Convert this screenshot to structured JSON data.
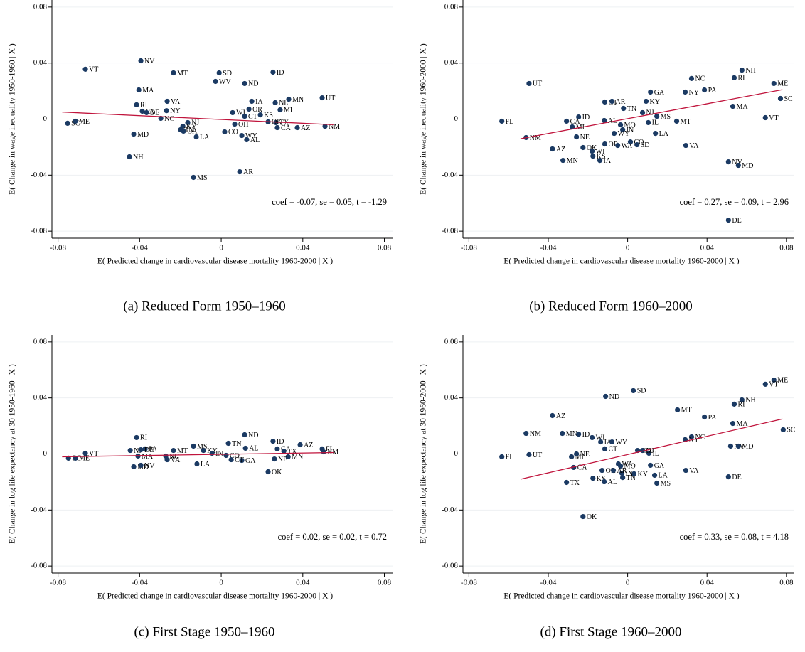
{
  "chart_data": [
    {
      "type": "scatter",
      "caption": "(a) Reduced Form 1950–1960",
      "xlabel": "E( Predicted change in cardiovascular disease mortality 1960-2000 | X )",
      "ylabel": "E( Change in wage inequality 1950-1960 | X )",
      "annotation": "coef = -0.07, se = 0.05, t = -1.29",
      "xlim": [
        -0.083,
        0.084
      ],
      "ylim": [
        -0.085,
        0.085
      ],
      "xticks": [
        -0.08,
        -0.04,
        0,
        0.04,
        0.08
      ],
      "yticks": [
        -0.08,
        -0.04,
        0,
        0.04,
        0.08
      ],
      "grid": true,
      "color": "#1b3a63",
      "label_color": "#1f4e79",
      "point_labels": [
        "SC",
        "ME",
        "VT",
        "NV",
        "MT",
        "SD",
        "ID",
        "WV",
        "ND",
        "MA",
        "VA",
        "IA",
        "NE",
        "MN",
        "UT",
        "RI",
        "NY",
        "PA",
        "DE",
        "NC",
        "MI",
        "OR",
        "WI",
        "KS",
        "CT",
        "OH",
        "TX",
        "CA",
        "AZ",
        "OK",
        "WY",
        "AL",
        "CO",
        "NJ",
        "KY",
        "TN",
        "GA",
        "LA",
        "MD",
        "NH",
        "MS",
        "AR",
        "NM"
      ],
      "x": [
        -0.0753,
        -0.0715,
        -0.0666,
        -0.0394,
        -0.0234,
        -0.001,
        0.0254,
        -0.0028,
        0.0115,
        -0.0404,
        -0.0265,
        0.015,
        0.0265,
        0.0331,
        0.0495,
        -0.0415,
        -0.0268,
        -0.0387,
        -0.0366,
        -0.0296,
        0.0289,
        0.0136,
        0.0056,
        0.0192,
        0.0115,
        0.0066,
        0.0268,
        0.0275,
        0.0373,
        0.023,
        0.0101,
        0.0125,
        0.0017,
        -0.0164,
        -0.0188,
        -0.0199,
        -0.0185,
        -0.0122,
        -0.0429,
        -0.045,
        -0.0136,
        0.0091,
        0.0509
      ],
      "y": [
        -0.003,
        -0.0015,
        0.0356,
        0.0416,
        0.033,
        0.033,
        0.0335,
        0.0269,
        0.0254,
        0.0208,
        0.0127,
        0.0127,
        0.0117,
        0.0142,
        0.0152,
        0.0102,
        0.006,
        0.0056,
        0.0046,
        0.0005,
        0.0066,
        0.0071,
        0.0046,
        0.003,
        0.002,
        -0.0036,
        -0.0025,
        -0.0061,
        -0.0061,
        -0.002,
        -0.0117,
        -0.0147,
        -0.0091,
        -0.0025,
        -0.0051,
        -0.0076,
        -0.0086,
        -0.0127,
        -0.0107,
        -0.0269,
        -0.0416,
        -0.0376,
        -0.0051
      ],
      "fit_line": {
        "x": [
          -0.078,
          0.055
        ],
        "y": [
          0.005,
          -0.004
        ],
        "color": "#c0143c"
      }
    },
    {
      "type": "scatter",
      "caption": "(b) Reduced Form 1960–2000",
      "xlabel": "E( Predicted change in cardiovascular disease mortality 1960-2000 | X )",
      "ylabel": "E( Change in wage inequality 1960-2000 | X )",
      "annotation": "coef = 0.27, se = 0.09, t = 2.96",
      "xlim": [
        -0.083,
        0.084
      ],
      "ylim": [
        -0.085,
        0.085
      ],
      "xticks": [
        -0.08,
        -0.04,
        0,
        0.04,
        0.08
      ],
      "yticks": [
        -0.08,
        -0.04,
        0,
        0.04,
        0.08
      ],
      "grid": true,
      "color": "#1b3a63",
      "label_color": "#1f4e79",
      "point_labels": [
        "FL",
        "UT",
        "NM",
        "AZ",
        "MN",
        "MI",
        "CA",
        "ID",
        "CT",
        "AR",
        "TN",
        "GA",
        "KY",
        "NC",
        "NH",
        "RI",
        "PA",
        "NY",
        "ME",
        "SC",
        "VT",
        "MA",
        "MT",
        "MS",
        "NJ",
        "IL",
        "LA",
        "AL",
        "OK",
        "NE",
        "WI",
        "KS",
        "IA",
        "OR",
        "WA",
        "CO",
        "SD",
        "MO",
        "IN",
        "WY",
        "VA",
        "NV",
        "MD",
        "DE"
      ],
      "x": [
        -0.0634,
        -0.0497,
        -0.0512,
        -0.0379,
        -0.0326,
        -0.0279,
        -0.0308,
        -0.0247,
        -0.0115,
        -0.0079,
        -0.0021,
        0.0115,
        0.0093,
        0.0322,
        0.0576,
        0.0537,
        0.0387,
        0.029,
        0.0737,
        0.077,
        0.0694,
        0.053,
        0.0247,
        0.0147,
        0.0075,
        0.0104,
        0.014,
        -0.0118,
        -0.0225,
        -0.0258,
        -0.0179,
        -0.0175,
        -0.014,
        -0.0115,
        -0.005,
        0.0014,
        0.0047,
        -0.0036,
        -0.0025,
        -0.0068,
        0.0293,
        0.0508,
        0.0558,
        0.0508
      ],
      "y": [
        -0.0015,
        0.0254,
        -0.0132,
        -0.0213,
        -0.0295,
        -0.0056,
        -0.0015,
        0.0015,
        0.0122,
        0.0127,
        0.0076,
        0.0193,
        0.0127,
        0.029,
        0.035,
        0.0295,
        0.0208,
        0.0193,
        0.0254,
        0.0147,
        0.001,
        0.0091,
        -0.0015,
        0.002,
        0.0046,
        -0.0025,
        -0.0102,
        -0.001,
        -0.0203,
        -0.0127,
        -0.0229,
        -0.0264,
        -0.0295,
        -0.0178,
        -0.0188,
        -0.0163,
        -0.0183,
        -0.0041,
        -0.0076,
        -0.0102,
        -0.0188,
        -0.0305,
        -0.033,
        -0.0721
      ],
      "fit_line": {
        "x": [
          -0.054,
          0.078
        ],
        "y": [
          -0.014,
          0.021
        ],
        "color": "#c0143c"
      }
    },
    {
      "type": "scatter",
      "caption": "(c) First Stage 1950–1960",
      "xlabel": "E( Predicted change in cardiovascular disease mortality 1960-2000 | X )",
      "ylabel": "E( Change in log life expectancy at 30 1950-1960 | X )",
      "annotation": "coef = 0.02, se = 0.02, t = 0.72",
      "xlim": [
        -0.083,
        0.084
      ],
      "ylim": [
        -0.085,
        0.085
      ],
      "xticks": [
        -0.08,
        -0.04,
        0,
        0.04,
        0.08
      ],
      "yticks": [
        -0.08,
        -0.04,
        0,
        0.04,
        0.08
      ],
      "grid": true,
      "color": "#1b3a63",
      "label_color": "#1f4e79",
      "point_labels": [
        "SC",
        "ME",
        "VT",
        "NJ",
        "RI",
        "PA",
        "DE",
        "MA",
        "MD",
        "NV",
        "NC",
        "VA",
        "MT",
        "MS",
        "LA",
        "TN",
        "ND",
        "ID",
        "AZ",
        "FL",
        "NM",
        "MN",
        "NE",
        "OK",
        "AL",
        "CA",
        "TX",
        "CO",
        "GA",
        "CT",
        "KY",
        "IN"
      ],
      "x": [
        -0.0749,
        -0.0715,
        -0.0666,
        -0.0446,
        -0.0415,
        -0.0373,
        -0.0394,
        -0.0408,
        -0.0429,
        -0.0394,
        -0.0272,
        -0.0265,
        -0.0234,
        -0.0136,
        -0.0119,
        0.0035,
        0.0115,
        0.0254,
        0.0387,
        0.0495,
        0.0502,
        0.0328,
        0.0261,
        0.023,
        0.0119,
        0.0275,
        0.0307,
        0.0024,
        0.0101,
        0.0049,
        -0.0087,
        -0.0045
      ],
      "y": [
        -0.003,
        -0.003,
        0.0005,
        0.0025,
        0.0117,
        0.0036,
        0.003,
        -0.0015,
        -0.0091,
        -0.0081,
        -0.0015,
        -0.0041,
        0.0025,
        0.0056,
        -0.0071,
        0.0076,
        0.0137,
        0.0091,
        0.0066,
        0.0036,
        0.0015,
        -0.002,
        -0.0036,
        -0.0127,
        0.0041,
        0.0036,
        0.002,
        -0.001,
        -0.0046,
        -0.0041,
        0.0025,
        0.0005
      ],
      "fit_line": {
        "x": [
          -0.078,
          0.055
        ],
        "y": [
          -0.002,
          0.001
        ],
        "color": "#c0143c"
      }
    },
    {
      "type": "scatter",
      "caption": "(d) First Stage 1960–2000",
      "xlabel": "E( Predicted change in cardiovascular disease mortality 1960-2000 | X )",
      "ylabel": "E( Change in log life expectancy at 30 1960-2000 | X )",
      "annotation": "coef = 0.33, se = 0.08, t = 4.18",
      "xlim": [
        -0.083,
        0.084
      ],
      "ylim": [
        -0.085,
        0.085
      ],
      "xticks": [
        -0.08,
        -0.04,
        0,
        0.04,
        0.08
      ],
      "yticks": [
        -0.08,
        -0.04,
        0,
        0.04,
        0.08
      ],
      "grid": true,
      "color": "#1b3a63",
      "label_color": "#1f4e79",
      "point_labels": [
        "FL",
        "UT",
        "NM",
        "AZ",
        "MN",
        "ID",
        "WI",
        "IA",
        "WY",
        "CT",
        "MI",
        "NE",
        "CA",
        "TX",
        "KS",
        "AL",
        "OK",
        "OR",
        "WA",
        "SD",
        "ND",
        "MT",
        "NH",
        "RI",
        "PA",
        "MA",
        "NC",
        "NY",
        "ME",
        "VT",
        "SC",
        "NV",
        "MD",
        "DE",
        "VA",
        "IL",
        "CO",
        "GA",
        "LA",
        "MS",
        "TN",
        "KY",
        "IN",
        "MO",
        "NJ",
        "AR"
      ],
      "x": [
        -0.0634,
        -0.0497,
        -0.0512,
        -0.0379,
        -0.0329,
        -0.0247,
        -0.0179,
        -0.0136,
        -0.0079,
        -0.0115,
        -0.0283,
        -0.0258,
        -0.0272,
        -0.0308,
        -0.0175,
        -0.0118,
        -0.0225,
        -0.0129,
        -0.0047,
        0.0029,
        -0.0111,
        0.0251,
        0.0576,
        0.0537,
        0.0387,
        0.053,
        0.0322,
        0.029,
        0.0737,
        0.0694,
        0.0784,
        0.0519,
        0.0558,
        0.0508,
        0.0293,
        0.0107,
        0.005,
        0.0115,
        0.0136,
        0.0147,
        -0.0025,
        0.0032,
        -0.0029,
        -0.0036,
        0.0075,
        -0.0072
      ],
      "y": [
        -0.002,
        -0.0005,
        0.0147,
        0.0274,
        0.0147,
        0.0142,
        0.0117,
        0.0086,
        0.0086,
        0.0036,
        -0.002,
        0.0,
        -0.0096,
        -0.0203,
        -0.0173,
        -0.0198,
        -0.0447,
        -0.0117,
        -0.0071,
        0.0452,
        0.0411,
        0.0315,
        0.0386,
        0.0356,
        0.0264,
        0.0218,
        0.0122,
        0.0102,
        0.0528,
        0.0498,
        0.0173,
        0.0056,
        0.0056,
        -0.0163,
        -0.0117,
        0.0005,
        0.0025,
        -0.0081,
        -0.0152,
        -0.0208,
        -0.0168,
        -0.0142,
        -0.0137,
        -0.0086,
        0.0025,
        -0.0117
      ],
      "fit_line": {
        "x": [
          -0.054,
          0.078
        ],
        "y": [
          -0.018,
          0.025
        ],
        "color": "#c0143c"
      }
    }
  ]
}
